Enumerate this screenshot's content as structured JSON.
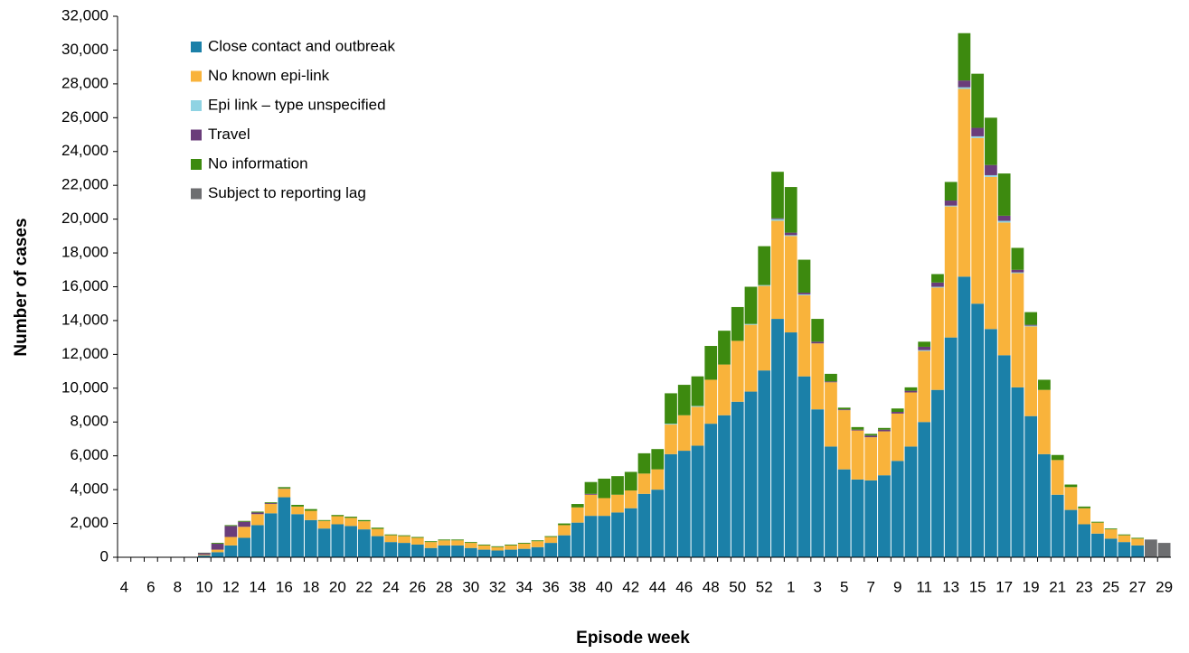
{
  "chart_data": {
    "type": "stacked-bar",
    "xlabel": "Episode week",
    "ylabel": "Number of cases",
    "categories": [
      "4",
      null,
      "6",
      null,
      "8",
      null,
      "10",
      null,
      "12",
      null,
      "14",
      null,
      "16",
      null,
      "18",
      null,
      "20",
      null,
      "22",
      null,
      "24",
      null,
      "26",
      null,
      "28",
      null,
      "30",
      null,
      "32",
      null,
      "34",
      null,
      "36",
      null,
      "38",
      null,
      "40",
      null,
      "42",
      null,
      "44",
      null,
      "46",
      null,
      "48",
      null,
      "50",
      null,
      "52",
      null,
      "1",
      null,
      "3",
      null,
      "5",
      null,
      "7",
      null,
      "9",
      null,
      "11",
      null,
      "13",
      null,
      "15",
      null,
      "17",
      null,
      "19",
      null,
      "21",
      null,
      "23",
      null,
      "25",
      null,
      "27",
      null,
      "29"
    ],
    "series": [
      {
        "name": "Close contact and outbreak",
        "color": "#1b80a8",
        "values": [
          0,
          0,
          0,
          0,
          0,
          20,
          100,
          300,
          700,
          1150,
          1900,
          2600,
          3550,
          2550,
          2200,
          1700,
          1950,
          1850,
          1650,
          1250,
          900,
          850,
          750,
          550,
          700,
          700,
          550,
          450,
          400,
          450,
          500,
          600,
          850,
          1300,
          2050,
          2450,
          2450,
          2650,
          2900,
          3750,
          4000,
          6100,
          6300,
          6600,
          7900,
          8400,
          9200,
          9800,
          11050,
          14100,
          13300,
          10700,
          8750,
          6550,
          5200,
          4600,
          4550,
          4850,
          5700,
          6550,
          8000,
          9900,
          13000,
          16600,
          15000,
          13500,
          11950,
          10050,
          8350,
          6100,
          3700,
          2800,
          1950,
          1400,
          1100,
          900,
          700,
          0,
          0
        ]
      },
      {
        "name": "No known epi-link",
        "color": "#f9b33b",
        "values": [
          0,
          0,
          0,
          0,
          0,
          0,
          50,
          150,
          500,
          650,
          650,
          550,
          500,
          450,
          550,
          450,
          480,
          480,
          480,
          430,
          400,
          400,
          400,
          350,
          300,
          300,
          300,
          250,
          200,
          250,
          300,
          350,
          350,
          600,
          900,
          1250,
          1050,
          1050,
          1050,
          1200,
          1200,
          1750,
          2100,
          2300,
          2600,
          3000,
          3600,
          3950,
          5000,
          5800,
          5700,
          4800,
          3900,
          3800,
          3500,
          2900,
          2550,
          2600,
          2800,
          3200,
          4200,
          6050,
          7750,
          11100,
          9800,
          9000,
          7850,
          6750,
          5300,
          3800,
          2050,
          1350,
          950,
          650,
          550,
          400,
          400,
          0,
          0
        ]
      },
      {
        "name": "Epi link – type unspecified",
        "color": "#8fd3e3",
        "values": [
          0,
          0,
          0,
          0,
          0,
          0,
          0,
          0,
          0,
          0,
          0,
          0,
          0,
          0,
          0,
          0,
          0,
          0,
          0,
          0,
          0,
          0,
          0,
          0,
          0,
          0,
          0,
          0,
          0,
          0,
          0,
          0,
          0,
          0,
          0,
          0,
          0,
          0,
          0,
          0,
          0,
          50,
          0,
          50,
          0,
          0,
          0,
          50,
          50,
          100,
          50,
          50,
          0,
          0,
          0,
          0,
          0,
          0,
          0,
          0,
          50,
          50,
          50,
          100,
          100,
          100,
          100,
          50,
          50,
          0,
          0,
          0,
          0,
          0,
          0,
          0,
          0,
          0,
          0
        ]
      },
      {
        "name": "Travel",
        "color": "#6a3d7a",
        "values": [
          0,
          0,
          0,
          0,
          0,
          0,
          100,
          350,
          650,
          300,
          100,
          50,
          20,
          0,
          0,
          0,
          0,
          0,
          0,
          0,
          0,
          0,
          0,
          0,
          0,
          0,
          0,
          0,
          0,
          0,
          0,
          0,
          0,
          0,
          0,
          50,
          0,
          0,
          0,
          0,
          0,
          0,
          0,
          0,
          0,
          0,
          0,
          0,
          0,
          50,
          150,
          100,
          100,
          50,
          50,
          50,
          100,
          100,
          100,
          100,
          200,
          250,
          300,
          400,
          500,
          600,
          300,
          150,
          50,
          0,
          0,
          0,
          0,
          0,
          0,
          0,
          0,
          0,
          0
        ]
      },
      {
        "name": "No information",
        "color": "#3d8a0f",
        "values": [
          0,
          0,
          0,
          0,
          0,
          0,
          20,
          50,
          50,
          50,
          50,
          50,
          80,
          100,
          100,
          50,
          70,
          70,
          70,
          70,
          50,
          50,
          50,
          50,
          50,
          50,
          50,
          50,
          50,
          50,
          50,
          50,
          50,
          100,
          200,
          700,
          1150,
          1100,
          1100,
          1200,
          1200,
          1800,
          1800,
          1750,
          2000,
          2000,
          2000,
          2200,
          2300,
          2750,
          2700,
          1950,
          1350,
          450,
          100,
          150,
          100,
          100,
          200,
          200,
          300,
          500,
          1100,
          2800,
          3200,
          2800,
          2500,
          1300,
          750,
          600,
          300,
          150,
          100,
          50,
          50,
          50,
          50,
          0,
          0
        ]
      },
      {
        "name": "Subject to reporting lag",
        "color": "#6d6e70",
        "values": [
          0,
          0,
          0,
          0,
          0,
          0,
          0,
          0,
          0,
          0,
          0,
          0,
          0,
          0,
          0,
          0,
          0,
          0,
          0,
          0,
          0,
          0,
          0,
          0,
          0,
          0,
          0,
          0,
          0,
          0,
          0,
          0,
          0,
          0,
          0,
          0,
          0,
          0,
          0,
          0,
          0,
          0,
          0,
          0,
          0,
          0,
          0,
          0,
          0,
          0,
          0,
          0,
          0,
          0,
          0,
          0,
          0,
          0,
          0,
          0,
          0,
          0,
          0,
          0,
          0,
          0,
          0,
          0,
          0,
          0,
          0,
          0,
          0,
          0,
          0,
          0,
          0,
          1050,
          850
        ]
      }
    ],
    "ylim": [
      0,
      32000
    ],
    "yticks": [
      0,
      {
        "value": 2000,
        "label": "2,000"
      },
      {
        "value": 4000,
        "label": "4,000"
      },
      {
        "value": 6000,
        "label": "6,000"
      },
      {
        "value": 8000,
        "label": "8,000"
      },
      {
        "value": 10000,
        "label": "10,000"
      },
      {
        "value": 12000,
        "label": "12,000"
      },
      {
        "value": 14000,
        "label": "14,000"
      },
      {
        "value": 16000,
        "label": "16,000"
      },
      {
        "value": 18000,
        "label": "18,000"
      },
      {
        "value": 20000,
        "label": "20,000"
      },
      {
        "value": 22000,
        "label": "22,000"
      },
      {
        "value": 24000,
        "label": "24,000"
      },
      {
        "value": 26000,
        "label": "26,000"
      },
      {
        "value": 28000,
        "label": "28,000"
      },
      {
        "value": 30000,
        "label": "30,000"
      },
      {
        "value": 32000,
        "label": "32,000"
      }
    ],
    "grid": false,
    "legend": "upper-left"
  }
}
